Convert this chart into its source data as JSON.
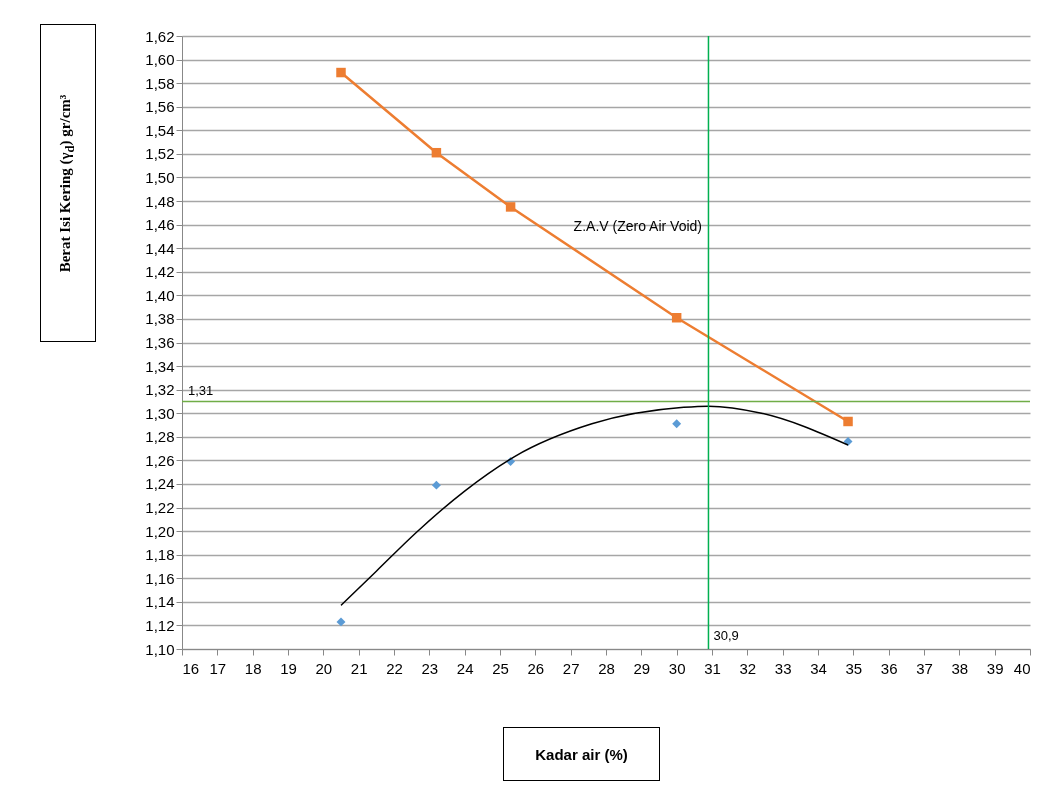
{
  "chart_data": {
    "type": "scatter",
    "xlabel": "Kadar air (%)",
    "ylabel": "Berat Isi Kering (γ$_{d}$) gr/cm³",
    "xlim": [
      16,
      40
    ],
    "xticks": [
      16,
      17,
      18,
      19,
      20,
      21,
      22,
      23,
      24,
      25,
      26,
      27,
      28,
      29,
      30,
      31,
      32,
      33,
      34,
      35,
      36,
      37,
      38,
      39,
      40
    ],
    "ylim": [
      1.1,
      1.62
    ],
    "yticks": [
      {
        "value": 1.1,
        "label": "1,10"
      },
      {
        "value": 1.12,
        "label": "1,12"
      },
      {
        "value": 1.14,
        "label": "1,14"
      },
      {
        "value": 1.16,
        "label": "1,16"
      },
      {
        "value": 1.18,
        "label": "1,18"
      },
      {
        "value": 1.2,
        "label": "1,20"
      },
      {
        "value": 1.22,
        "label": "1,22"
      },
      {
        "value": 1.24,
        "label": "1,24"
      },
      {
        "value": 1.26,
        "label": "1,26"
      },
      {
        "value": 1.28,
        "label": "1,28"
      },
      {
        "value": 1.3,
        "label": "1,30"
      },
      {
        "value": 1.32,
        "label": "1,32"
      },
      {
        "value": 1.34,
        "label": "1,34"
      },
      {
        "value": 1.36,
        "label": "1,36"
      },
      {
        "value": 1.38,
        "label": "1,38"
      },
      {
        "value": 1.4,
        "label": "1,40"
      },
      {
        "value": 1.42,
        "label": "1,42"
      },
      {
        "value": 1.44,
        "label": "1,44"
      },
      {
        "value": 1.46,
        "label": "1,46"
      },
      {
        "value": 1.48,
        "label": "1,48"
      },
      {
        "value": 1.5,
        "label": "1,50"
      },
      {
        "value": 1.52,
        "label": "1,52"
      },
      {
        "value": 1.54,
        "label": "1,54"
      },
      {
        "value": 1.56,
        "label": "1,56"
      },
      {
        "value": 1.58,
        "label": "1,58"
      },
      {
        "value": 1.6,
        "label": "1,60"
      },
      {
        "value": 1.62,
        "label": "1,62"
      }
    ],
    "grid": "y",
    "series": [
      {
        "type": "line",
        "color": "#ed7d31",
        "marker": "square",
        "x": [
          20.5,
          23.2,
          25.3,
          30.0,
          34.85
        ],
        "values": [
          1.589,
          1.521,
          1.475,
          1.381,
          1.293
        ]
      },
      {
        "type": "scatter",
        "color": "#5b9bd5",
        "marker": "diamond",
        "x": [
          20.5,
          23.2,
          25.3,
          30.0,
          34.85
        ],
        "values": [
          1.123,
          1.239,
          1.259,
          1.291,
          1.276
        ]
      },
      {
        "type": "line",
        "color": "#000000",
        "marker": "none",
        "x": [
          20.5,
          21.5,
          22.6,
          24.0,
          25.4,
          27.6,
          30.2,
          30.9,
          32.4,
          34.85
        ],
        "values": [
          1.137,
          1.166,
          1.198,
          1.234,
          1.263,
          1.291,
          1.305,
          1.306,
          1.3,
          1.273
        ]
      }
    ],
    "ref_lines": [
      {
        "axis": "y",
        "value": 1.31,
        "label": "1,31",
        "color": "#70ad47"
      },
      {
        "axis": "x",
        "value": 30.9,
        "label": "30,9",
        "color": "#00b050"
      }
    ],
    "annotations": [
      {
        "text": "Z.A.V (Zero Air Void)",
        "x": 26.8,
        "y": 1.445
      }
    ]
  }
}
